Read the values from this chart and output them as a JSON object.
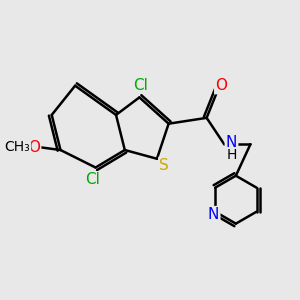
{
  "background_color": "#e8e8e8",
  "atom_colors": {
    "C": "#000000",
    "N": "#0000ff",
    "O": "#ff0000",
    "S": "#ccaa00",
    "Cl": "#00aa00",
    "H": "#000000",
    "methoxy_O": "#ff0000"
  },
  "bond_color": "#000000",
  "bond_width": 1.8,
  "font_size_atoms": 11,
  "font_size_small": 9
}
